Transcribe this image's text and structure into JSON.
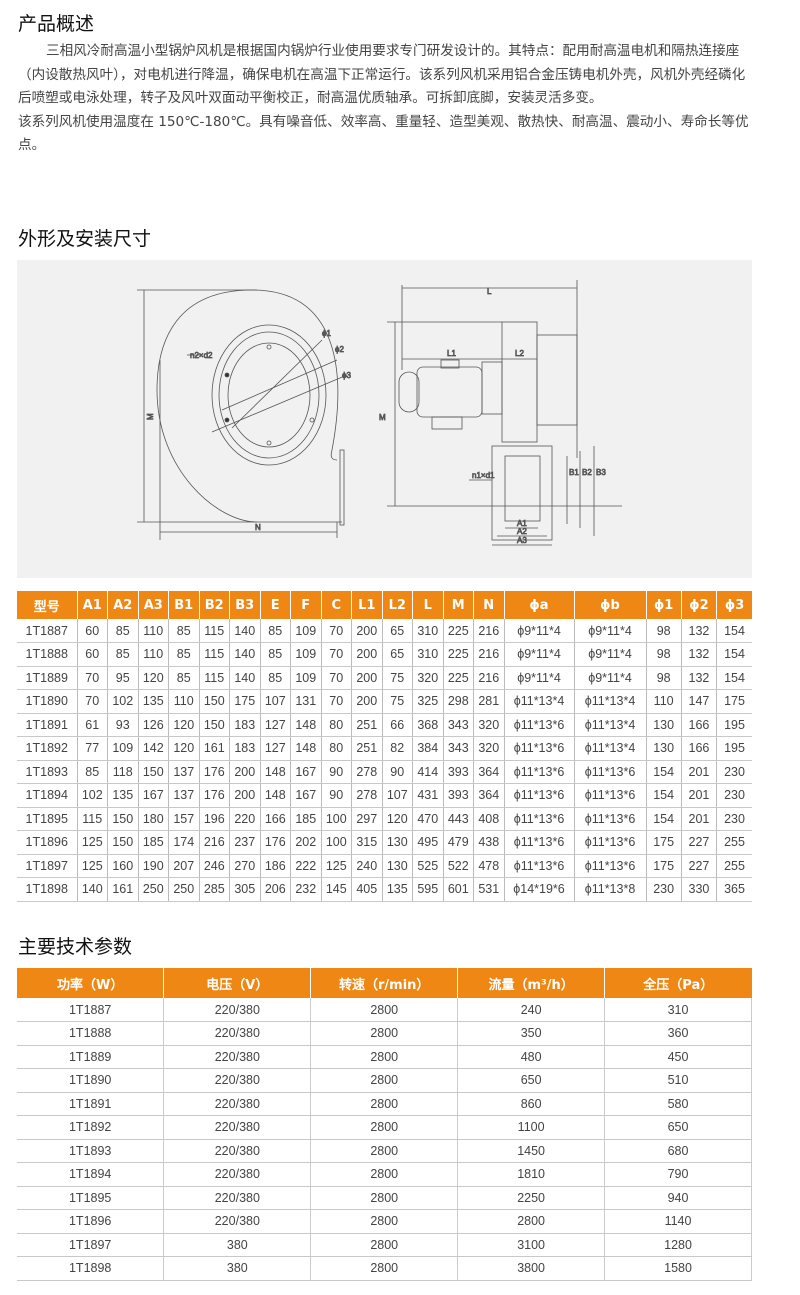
{
  "overview": {
    "title": "产品概述",
    "paragraph1": "三相风冷耐高温小型锅炉风机是根据国内锅炉行业使用要求专门研发设计的。其特点：配用耐高温电机和隔热连接座（内设散热风叶），对电机进行降温，确保电机在高温下正常运行。该系列风机采用铝合金压铸电机外壳，风机外壳经磷化后喷塑或电泳处理，转子及风叶双面动平衡校正，耐高温优质轴承。可拆卸底脚，安装灵活多变。",
    "paragraph2": "该系列风机使用温度在 150℃-180℃。具有噪音低、效率高、重量轻、造型美观、散热快、耐高温、震动小、寿命长等优点。"
  },
  "dimensions": {
    "title": "外形及安装尺寸",
    "diagram_labels": {
      "M": "M",
      "N": "N",
      "L": "L",
      "L1": "L1",
      "L2": "L2",
      "phi1": "ϕ1",
      "phi2": "ϕ2",
      "phi3": "ϕ3",
      "n2d2": "n2×d2",
      "n1d1": "n1×d1",
      "A1": "A1",
      "A2": "A2",
      "A3": "A3",
      "B1": "B1",
      "B2": "B2",
      "B3": "B3"
    },
    "headers": [
      "型号",
      "A1",
      "A2",
      "A3",
      "B1",
      "B2",
      "B3",
      "E",
      "F",
      "C",
      "L1",
      "L2",
      "L",
      "M",
      "N",
      "ϕa",
      "ϕb",
      "ϕ1",
      "ϕ2",
      "ϕ3"
    ],
    "rows": [
      [
        "1T1887",
        "60",
        "85",
        "110",
        "85",
        "115",
        "140",
        "85",
        "109",
        "70",
        "200",
        "65",
        "310",
        "225",
        "216",
        "ϕ9*11*4",
        "ϕ9*11*4",
        "98",
        "132",
        "154"
      ],
      [
        "1T1888",
        "60",
        "85",
        "110",
        "85",
        "115",
        "140",
        "85",
        "109",
        "70",
        "200",
        "65",
        "310",
        "225",
        "216",
        "ϕ9*11*4",
        "ϕ9*11*4",
        "98",
        "132",
        "154"
      ],
      [
        "1T1889",
        "70",
        "95",
        "120",
        "85",
        "115",
        "140",
        "85",
        "109",
        "70",
        "200",
        "75",
        "320",
        "225",
        "216",
        "ϕ9*11*4",
        "ϕ9*11*4",
        "98",
        "132",
        "154"
      ],
      [
        "1T1890",
        "70",
        "102",
        "135",
        "110",
        "150",
        "175",
        "107",
        "131",
        "70",
        "200",
        "75",
        "325",
        "298",
        "281",
        "ϕ11*13*4",
        "ϕ11*13*4",
        "110",
        "147",
        "175"
      ],
      [
        "1T1891",
        "61",
        "93",
        "126",
        "120",
        "150",
        "183",
        "127",
        "148",
        "80",
        "251",
        "66",
        "368",
        "343",
        "320",
        "ϕ11*13*6",
        "ϕ11*13*4",
        "130",
        "166",
        "195"
      ],
      [
        "1T1892",
        "77",
        "109",
        "142",
        "120",
        "161",
        "183",
        "127",
        "148",
        "80",
        "251",
        "82",
        "384",
        "343",
        "320",
        "ϕ11*13*6",
        "ϕ11*13*4",
        "130",
        "166",
        "195"
      ],
      [
        "1T1893",
        "85",
        "118",
        "150",
        "137",
        "176",
        "200",
        "148",
        "167",
        "90",
        "278",
        "90",
        "414",
        "393",
        "364",
        "ϕ11*13*6",
        "ϕ11*13*6",
        "154",
        "201",
        "230"
      ],
      [
        "1T1894",
        "102",
        "135",
        "167",
        "137",
        "176",
        "200",
        "148",
        "167",
        "90",
        "278",
        "107",
        "431",
        "393",
        "364",
        "ϕ11*13*6",
        "ϕ11*13*6",
        "154",
        "201",
        "230"
      ],
      [
        "1T1895",
        "115",
        "150",
        "180",
        "157",
        "196",
        "220",
        "166",
        "185",
        "100",
        "297",
        "120",
        "470",
        "443",
        "408",
        "ϕ11*13*6",
        "ϕ11*13*6",
        "154",
        "201",
        "230"
      ],
      [
        "1T1896",
        "125",
        "150",
        "185",
        "174",
        "216",
        "237",
        "176",
        "202",
        "100",
        "315",
        "130",
        "495",
        "479",
        "438",
        "ϕ11*13*6",
        "ϕ11*13*6",
        "175",
        "227",
        "255"
      ],
      [
        "1T1897",
        "125",
        "160",
        "190",
        "207",
        "246",
        "270",
        "186",
        "222",
        "125",
        "240",
        "130",
        "525",
        "522",
        "478",
        "ϕ11*13*6",
        "ϕ11*13*6",
        "175",
        "227",
        "255"
      ],
      [
        "1T1898",
        "140",
        "161",
        "250",
        "250",
        "285",
        "305",
        "206",
        "232",
        "145",
        "405",
        "135",
        "595",
        "601",
        "531",
        "ϕ14*19*6",
        "ϕ11*13*8",
        "230",
        "330",
        "365"
      ]
    ]
  },
  "specs": {
    "title": "主要技术参数",
    "headers": [
      "功率（W）",
      "电压（V）",
      "转速（r/min）",
      "流量（m³/h）",
      "全压（Pa）"
    ],
    "rows": [
      [
        "1T1887",
        "220/380",
        "2800",
        "240",
        "310"
      ],
      [
        "1T1888",
        "220/380",
        "2800",
        "350",
        "360"
      ],
      [
        "1T1889",
        "220/380",
        "2800",
        "480",
        "450"
      ],
      [
        "1T1890",
        "220/380",
        "2800",
        "650",
        "510"
      ],
      [
        "1T1891",
        "220/380",
        "2800",
        "860",
        "580"
      ],
      [
        "1T1892",
        "220/380",
        "2800",
        "1100",
        "650"
      ],
      [
        "1T1893",
        "220/380",
        "2800",
        "1450",
        "680"
      ],
      [
        "1T1894",
        "220/380",
        "2800",
        "1810",
        "790"
      ],
      [
        "1T1895",
        "220/380",
        "2800",
        "2250",
        "940"
      ],
      [
        "1T1896",
        "220/380",
        "2800",
        "2800",
        "1140"
      ],
      [
        "1T1897",
        "380",
        "2800",
        "3100",
        "1280"
      ],
      [
        "1T1898",
        "380",
        "2800",
        "3800",
        "1580"
      ]
    ]
  },
  "colors": {
    "accent": "#ee8713",
    "diagram_bg": "#f1f1f1"
  }
}
